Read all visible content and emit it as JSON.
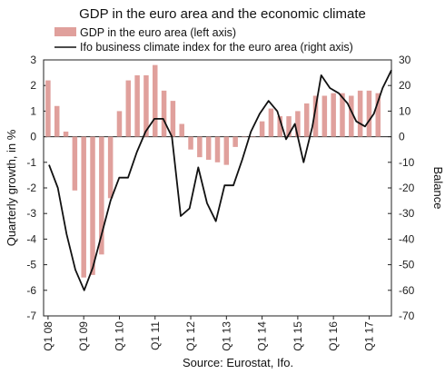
{
  "chart_data": {
    "type": "bar+line",
    "title": "GDP in the euro area and the economic climate",
    "source": "Source: Eurostat, Ifo.",
    "left_axis": {
      "label": "Quarterly growth, in %",
      "min": -7,
      "max": 3,
      "ticks": [
        "3",
        "2",
        "1",
        "0",
        "-1",
        "-2",
        "-3",
        "-4",
        "-5",
        "-6",
        "-7"
      ]
    },
    "right_axis": {
      "label": "Balance",
      "min": -70,
      "max": 30,
      "ticks": [
        "30",
        "20",
        "10",
        "0",
        "-10",
        "-20",
        "-30",
        "-40",
        "-50",
        "-60",
        "-70"
      ]
    },
    "x_labels": [
      "Q1 08",
      "Q1 09",
      "Q1 10",
      "Q1 11",
      "Q1 12",
      "Q1 13",
      "Q1 14",
      "Q1 15",
      "Q1 16",
      "Q1 17"
    ],
    "grid": false,
    "legend_position": "top",
    "series": [
      {
        "name": "GDP in the euro area (left axis)",
        "type": "bar",
        "axis": "left",
        "color": "#e0a09c",
        "values": [
          2.2,
          1.2,
          0.2,
          -2.1,
          -5.5,
          -5.4,
          -4.6,
          -2.4,
          1.0,
          2.2,
          2.4,
          2.4,
          2.8,
          1.8,
          1.4,
          0.5,
          -0.5,
          -0.8,
          -0.9,
          -1.0,
          -1.1,
          -0.4,
          0.0,
          0.0,
          0.6,
          1.1,
          0.8,
          0.8,
          1.0,
          1.3,
          1.6,
          1.6,
          1.7,
          1.7,
          1.6,
          1.8,
          1.8,
          1.7
        ]
      },
      {
        "name": "Ifo business climate index for the euro area (right axis)",
        "type": "line",
        "axis": "right",
        "color": "#111111",
        "values": [
          -11,
          -20,
          -38,
          -52,
          -60,
          -51,
          -38,
          -25,
          -16,
          -16,
          -6,
          2,
          7,
          7,
          0,
          -31,
          -28,
          -12,
          -26,
          -33,
          -19,
          -19,
          -9,
          2,
          9,
          14,
          10,
          -1,
          5,
          -10,
          4,
          24,
          19,
          17,
          13,
          6,
          4,
          9,
          19,
          26
        ]
      }
    ]
  }
}
